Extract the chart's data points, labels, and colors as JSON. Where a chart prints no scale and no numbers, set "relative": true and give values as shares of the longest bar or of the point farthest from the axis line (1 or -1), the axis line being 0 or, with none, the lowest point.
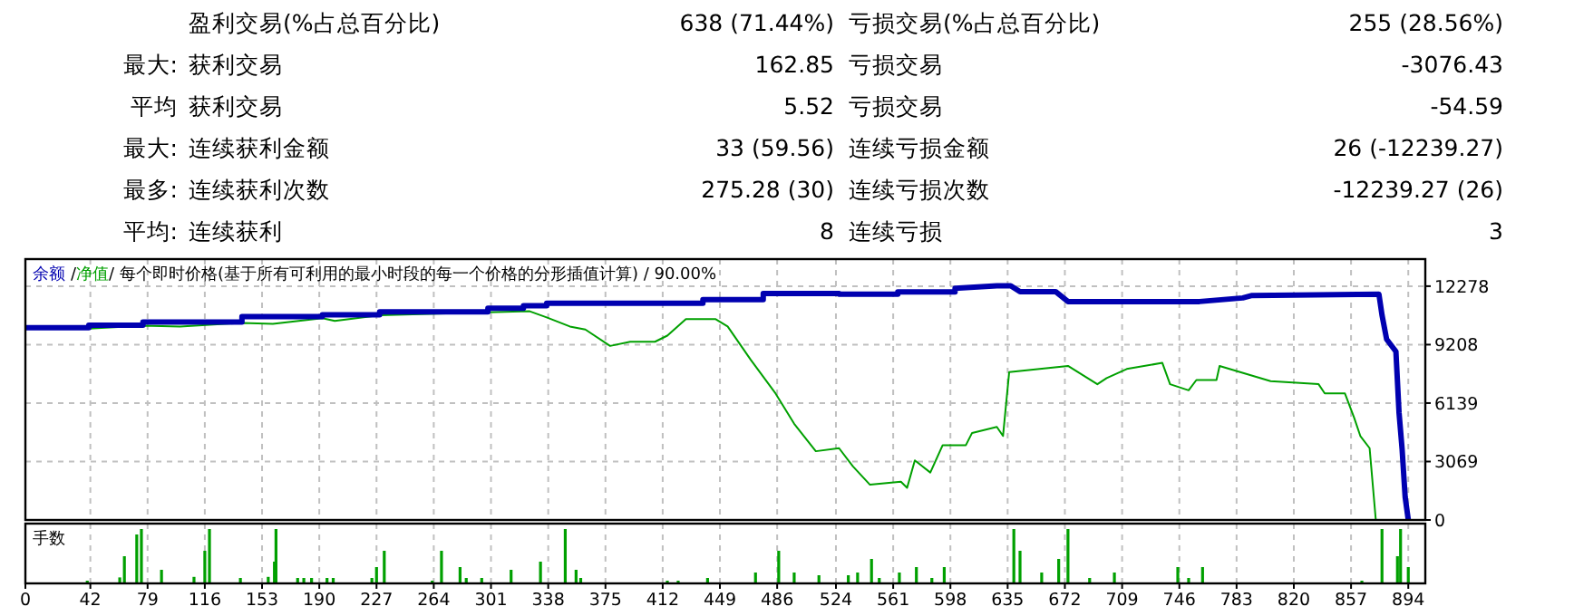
{
  "chart_data": [
    {
      "type": "other",
      "annotations": [
        "盈利交易(%占总百分比)",
        "638 (71.44%)",
        "亏损交易(%占总百分比)",
        "255 (28.56%)",
        "最大:",
        "获利交易",
        "162.85",
        "亏损交易",
        "-3076.43",
        "平均",
        "获利交易",
        "5.52",
        "亏损交易",
        "-54.59",
        "最大:",
        "连续获利金额",
        "33 (59.56)",
        "连续亏损金额",
        "26 (-12239.27)",
        "最多:",
        "连续获利次数",
        "275.28 (30)",
        "连续亏损次数",
        "-12239.27 (26)",
        "平均:",
        "连续获利",
        "8",
        "连续亏损",
        "3"
      ]
    },
    {
      "type": "line",
      "annotations": [
        "/"
      ],
      "subtitle": "/ 每个即时价格(基于所有可利用的最小时段的每一个价格的分形插值计算) / 90.00%",
      "xlim": [
        0,
        905
      ],
      "ylim": [
        0,
        13700
      ],
      "xticks": [
        0,
        42,
        79,
        116,
        153,
        190,
        227,
        264,
        301,
        338,
        375,
        412,
        449,
        486,
        524,
        561,
        598,
        635,
        672,
        709,
        746,
        783,
        820,
        857,
        894
      ],
      "yticks": [
        0,
        3069,
        6139,
        9208,
        12278
      ],
      "tick_labels": "y",
      "grid": true,
      "legend": "top left",
      "series": [
        {
          "name": "余额",
          "color": "#0000b0",
          "x": [
            0,
            41,
            41,
            76,
            76,
            140,
            140,
            192,
            192,
            229,
            229,
            299,
            299,
            322,
            322,
            337,
            337,
            438,
            438,
            477,
            477,
            526,
            526,
            564,
            564,
            601,
            601,
            628,
            637,
            643,
            666,
            674,
            759,
            787,
            793,
            875,
            877,
            880,
            886,
            888,
            890,
            892,
            894
          ],
          "values": [
            10100,
            10100,
            10230,
            10230,
            10390,
            10390,
            10680,
            10680,
            10770,
            10770,
            10930,
            10930,
            11120,
            11120,
            11250,
            11250,
            11380,
            11380,
            11570,
            11570,
            11890,
            11890,
            11860,
            11860,
            11980,
            11980,
            12170,
            12300,
            12300,
            11990,
            11990,
            11470,
            11470,
            11660,
            11790,
            11860,
            10770,
            9490,
            8850,
            5650,
            3730,
            1180,
            0
          ]
        },
        {
          "name": "净值",
          "color": "#00a000",
          "x": [
            41,
            76,
            100,
            140,
            160,
            192,
            200,
            229,
            299,
            326,
            337,
            352,
            362,
            378,
            391,
            407,
            415,
            427,
            446,
            454,
            469,
            485,
            497,
            511,
            526,
            535,
            546,
            566,
            570,
            575,
            585,
            593,
            608,
            612,
            628,
            632,
            636,
            674,
            693,
            699,
            712,
            735,
            740,
            752,
            757,
            770,
            772,
            805,
            836,
            840,
            853,
            859,
            863,
            869,
            873
          ],
          "values": [
            10050,
            10200,
            10150,
            10350,
            10300,
            10600,
            10450,
            10750,
            10900,
            10960,
            10640,
            10160,
            10000,
            9140,
            9360,
            9360,
            9680,
            10550,
            10550,
            10160,
            8400,
            6640,
            5050,
            3610,
            3770,
            2810,
            1850,
            2010,
            1690,
            3130,
            2490,
            3930,
            3930,
            4570,
            4890,
            4410,
            7770,
            8090,
            7130,
            7450,
            7930,
            8250,
            7130,
            6810,
            7350,
            7350,
            8090,
            7290,
            7130,
            6650,
            6650,
            5370,
            4410,
            3770,
            0
          ]
        }
      ]
    },
    {
      "type": "bar",
      "title": "手数",
      "relative": true,
      "xlim": [
        0,
        905
      ],
      "color": "#00a000",
      "tick_labels": "x",
      "grid": "x",
      "xticks": [
        0,
        42,
        79,
        116,
        153,
        190,
        227,
        264,
        301,
        338,
        375,
        412,
        449,
        486,
        524,
        561,
        598,
        635,
        672,
        709,
        746,
        783,
        820,
        857,
        894
      ],
      "x": [
        40,
        61,
        64,
        72,
        75,
        88,
        109,
        116,
        119,
        139,
        157,
        161,
        162,
        176,
        180,
        185,
        195,
        199,
        224,
        227,
        232,
        263,
        269,
        281,
        285,
        295,
        314,
        333,
        349,
        356,
        359,
        415,
        422,
        441,
        472,
        487,
        497,
        513,
        532,
        538,
        547,
        552,
        565,
        576,
        586,
        594,
        639,
        643,
        657,
        668,
        674,
        688,
        704,
        745,
        752,
        761,
        864,
        877,
        887,
        889,
        894
      ],
      "values": [
        0.05,
        0.11,
        0.5,
        0.9,
        1,
        0.25,
        0.12,
        0.6,
        1,
        0.1,
        0.12,
        0.4,
        1,
        0.1,
        0.1,
        0.1,
        0.1,
        0.1,
        0.1,
        0.3,
        0.6,
        0.05,
        0.6,
        0.3,
        0.1,
        0.1,
        0.25,
        0.4,
        1,
        0.25,
        0.1,
        0.05,
        0.05,
        0.1,
        0.2,
        0.6,
        0.2,
        0.15,
        0.15,
        0.2,
        0.45,
        0.1,
        0.2,
        0.3,
        0.1,
        0.3,
        1,
        0.6,
        0.2,
        0.45,
        1,
        0.1,
        0.2,
        0.3,
        0.1,
        0.3,
        0.05,
        1,
        0.5,
        1,
        0.3
      ]
    }
  ]
}
